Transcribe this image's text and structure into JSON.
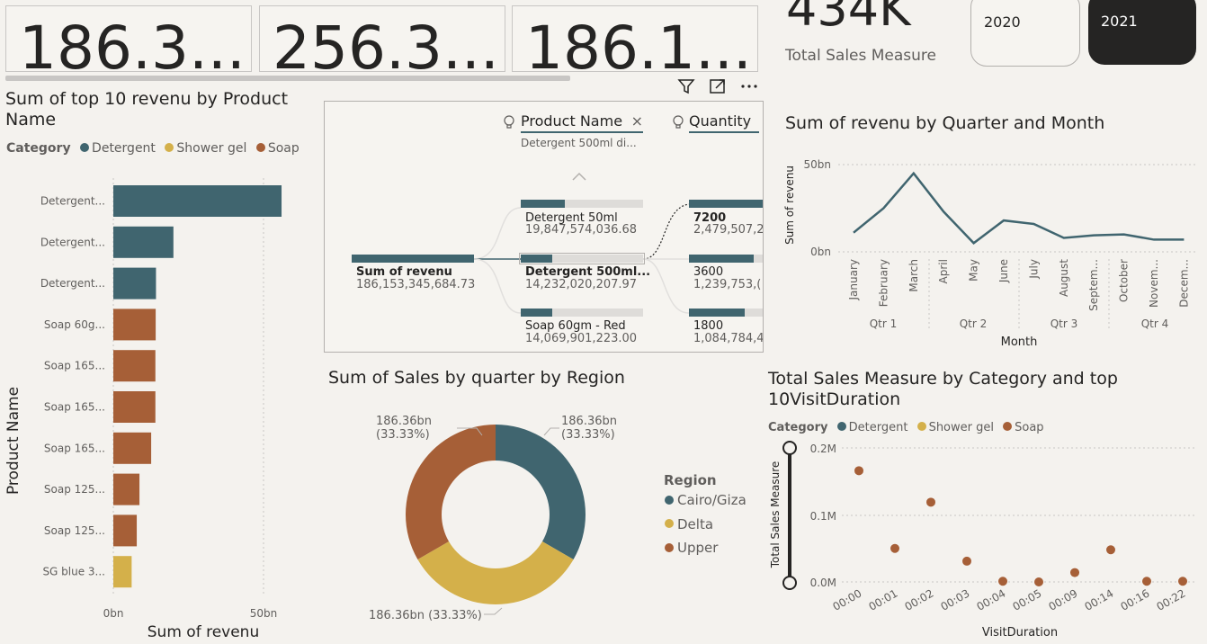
{
  "kpis": [
    "186.3...",
    "256.3...",
    "186.1..."
  ],
  "total_sales": {
    "value": "434K",
    "label": "Total Sales Measure"
  },
  "year_slicer": {
    "options": [
      "2020",
      "2021"
    ],
    "selected": "2021"
  },
  "colors": {
    "detergent": "#40656f",
    "shower_gel": "#d4b04a",
    "soap": "#a65f37",
    "dark": "#252423",
    "grid": "#c8c6c4"
  },
  "bar_visual": {
    "title": "Sum of top 10 revenu by Product Name",
    "legend_title": "Category",
    "legend": [
      "Detergent",
      "Shower gel",
      "Soap"
    ],
    "xlabel": "Sum of revenu",
    "ylabel": "Product Name",
    "ticks": [
      "0bn",
      "50bn"
    ]
  },
  "decomp": {
    "col1_header": "Product Name",
    "col1_sub": "Detergent 500ml di...",
    "col2_header": "Quantity",
    "root": {
      "label": "Sum of revenu",
      "value": "186,153,345,684.73",
      "fill": 1.0
    },
    "level1": [
      {
        "label": "Detergent 50ml",
        "value": "19,847,574,036.68",
        "fill": 0.36
      },
      {
        "label": "Detergent 500ml...",
        "value": "14,232,020,207.97",
        "fill": 0.26
      },
      {
        "label": "Soap 60gm - Red",
        "value": "14,069,901,223.00",
        "fill": 0.26
      }
    ],
    "level2": [
      {
        "label": "7200",
        "value": "2,479,507,2",
        "fill": 1.0
      },
      {
        "label": "3600",
        "value": "1,239,753,(",
        "fill": 0.88
      },
      {
        "label": "1800",
        "value": "1,084,784,4",
        "fill": 0.76
      }
    ]
  },
  "donut": {
    "title": "Sum of Sales by quarter by Region",
    "legend_title": "Region",
    "legend": [
      "Cairo/Giza",
      "Delta",
      "Upper"
    ],
    "labels": [
      "186.36bn\n(33.33%)",
      "186.36bn (33.33%)",
      "186.36bn\n(33.33%)"
    ]
  },
  "line_visual": {
    "title": "Sum of revenu by Quarter and Month",
    "ylabel": "Sum of revenu",
    "xlabel": "Month",
    "yticks": [
      "50bn",
      "0bn"
    ],
    "months": [
      "January",
      "February",
      "March",
      "April",
      "May",
      "June",
      "July",
      "August",
      "Septem...",
      "October",
      "Novem...",
      "Decem..."
    ],
    "quarters": [
      "Qtr 1",
      "Qtr 2",
      "Qtr 3",
      "Qtr 4"
    ]
  },
  "scatter_visual": {
    "title": "Total Sales Measure by Category and top 10VisitDuration",
    "legend_title": "Category",
    "legend": [
      "Detergent",
      "Shower gel",
      "Soap"
    ],
    "ylabel": "Total Sales Measure",
    "xlabel": "VisitDuration",
    "yticks": [
      "0.2M",
      "0.1M",
      "0.0M"
    ]
  },
  "chart_data": [
    {
      "type": "bar",
      "orientation": "horizontal",
      "title": "Sum of top 10 revenu by Product Name",
      "xlabel": "Sum of revenu",
      "ylabel": "Product Name",
      "categories": [
        "Detergent...",
        "Detergent...",
        "Detergent...",
        "Soap 60g...",
        "Soap 165...",
        "Soap 165...",
        "Soap 165...",
        "Soap 125...",
        "Soap 125...",
        "SG blue 3..."
      ],
      "category_group": [
        "Detergent",
        "Detergent",
        "Detergent",
        "Soap",
        "Soap",
        "Soap",
        "Soap",
        "Soap",
        "Soap",
        "Shower gel"
      ],
      "values": [
        56,
        20,
        14.2,
        14.1,
        14,
        14,
        12.6,
        8.7,
        7.8,
        6.1
      ],
      "unit": "bn",
      "xlim": [
        0,
        60
      ],
      "xticks": [
        "0bn",
        "50bn"
      ]
    },
    {
      "type": "pie",
      "title": "Sum of Sales by quarter by Region",
      "categories": [
        "Cairo/Giza",
        "Delta",
        "Upper"
      ],
      "values": [
        186.36,
        186.36,
        186.36
      ],
      "unit": "bn"
    },
    {
      "type": "line",
      "title": "Sum of revenu by Quarter and Month",
      "xlabel": "Month",
      "ylabel": "Sum of revenu",
      "x": [
        "January",
        "February",
        "March",
        "April",
        "May",
        "June",
        "July",
        "August",
        "Septem...",
        "October",
        "Novem...",
        "Decem..."
      ],
      "values": [
        11,
        25,
        45,
        23,
        5,
        18,
        16,
        8,
        9.5,
        10,
        7,
        7
      ],
      "ylim": [
        0,
        50
      ],
      "unit": "bn"
    },
    {
      "type": "scatter",
      "title": "Total Sales Measure by Category and top 10VisitDuration",
      "xlabel": "VisitDuration",
      "ylabel": "Total Sales Measure",
      "x": [
        "00:00",
        "00:01",
        "00:02",
        "00:03",
        "00:04",
        "00:05",
        "00:09",
        "00:14",
        "00:16",
        "00:22"
      ],
      "series": [
        {
          "name": "Soap",
          "values": [
            0.166,
            0.05,
            0.119,
            0.031,
            0.001,
            0.0,
            0.014,
            0.048,
            0.001,
            0.001
          ]
        }
      ],
      "ylim": [
        0,
        0.2
      ],
      "unit": "M"
    }
  ]
}
